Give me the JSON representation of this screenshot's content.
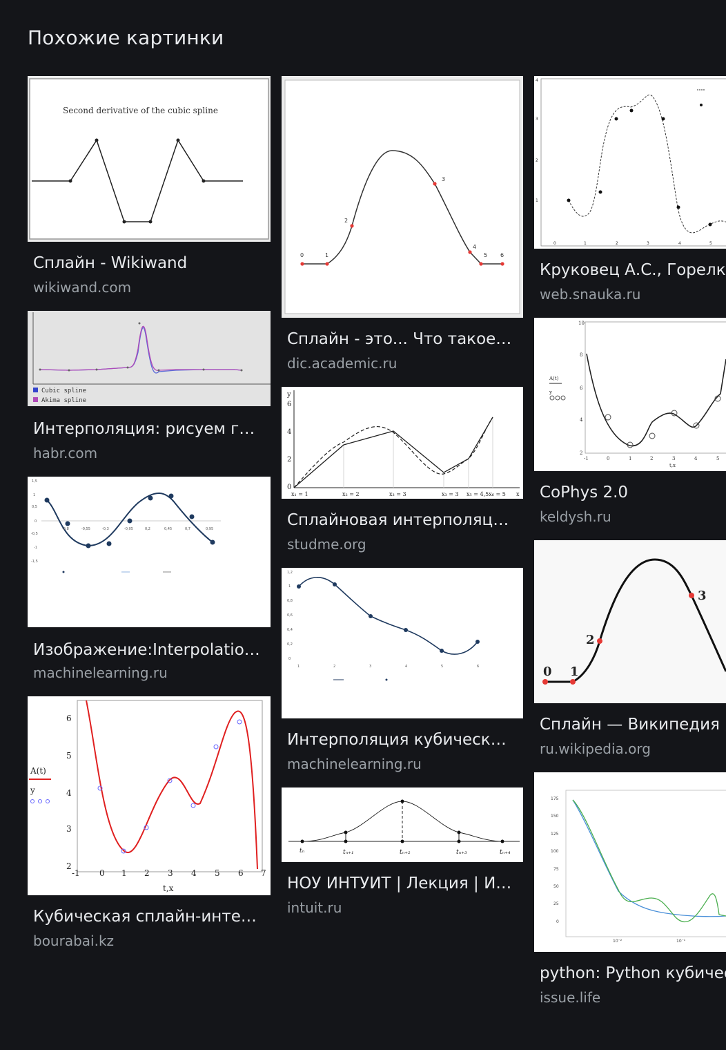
{
  "section_title": "Похожие картинки",
  "results": [
    {
      "title": "Сплайн - Wikiwand",
      "source": "wikiwand.com",
      "thumb_caption": "Second derivative of the cubic spline"
    },
    {
      "title": "Интерполяция: рисуем гла…",
      "source": "habr.com",
      "legend": [
        "Cubic spline",
        "Akima spline"
      ]
    },
    {
      "title": "Изображение:Interpolation r…",
      "source": "machinelearning.ru"
    },
    {
      "title": "Кубическая сплайн-интерп…",
      "source": "bourabai.kz",
      "axis_labels": {
        "x": "t,x",
        "y1": "A(t)",
        "y2": "y"
      }
    },
    {
      "title": "Сплайн - это... Что такое С…",
      "source": "dic.academic.ru"
    },
    {
      "title": "Сплайновая интерполяция…",
      "source": "studme.org"
    },
    {
      "title": "Интерполяция кубическим…",
      "source": "machinelearning.ru"
    },
    {
      "title": "НОУ ИНТУИТ | Лекция | Ин…",
      "source": "intuit.ru"
    },
    {
      "title": "Круковец А.С., Горелкина",
      "source": "web.snauka.ru"
    },
    {
      "title": "CoPhys 2.0",
      "source": "keldysh.ru"
    },
    {
      "title": "Сплайн — Википедия",
      "source": "ru.wikipedia.org"
    },
    {
      "title": "python: Python кубическ",
      "source": "issue.life"
    }
  ],
  "colors": {
    "background": "#141519",
    "title": "#e8eaed",
    "source": "#9aa0a6",
    "thumb_bg": "#f4f4f4"
  }
}
